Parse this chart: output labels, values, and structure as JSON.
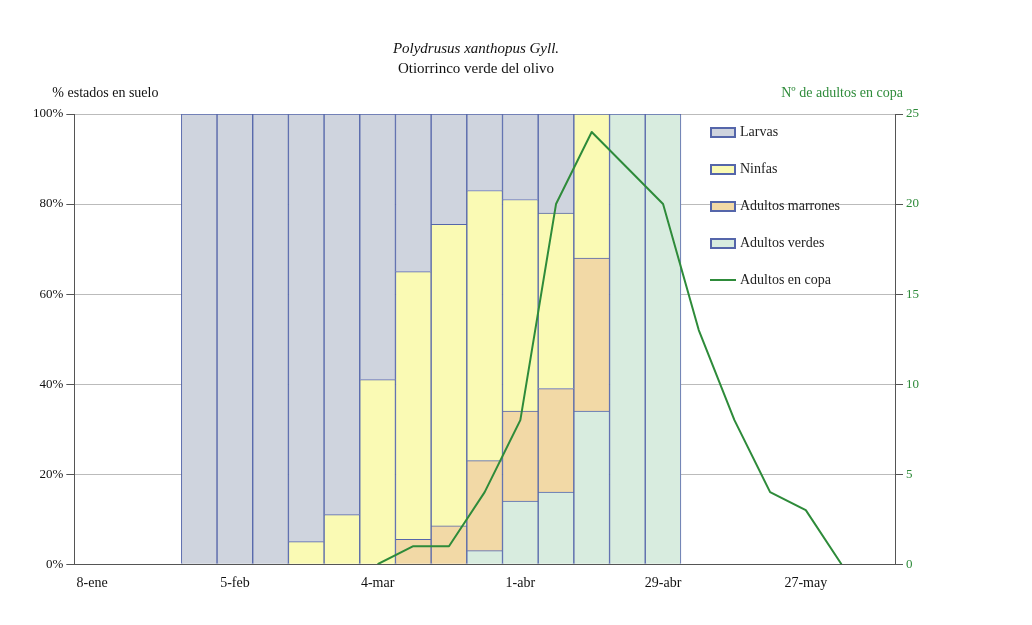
{
  "chart_data": {
    "type": "bar",
    "stacked": true,
    "title": "Polydrusus xanthopus Gyll.",
    "subtitle": "Otiorrinco verde del olivo",
    "ylabel": "% estados en suelo",
    "y2label": "Nº de adultos en copa",
    "categories": [
      "8-ene",
      null,
      null,
      null,
      "5-feb",
      null,
      null,
      null,
      "4-mar",
      null,
      null,
      null,
      "1-abr",
      null,
      null,
      null,
      "29-abr",
      null,
      null,
      null,
      "27-may",
      null,
      null
    ],
    "series": [
      {
        "name": "Adultos verdes",
        "color": "#d8ecdf",
        "values": [
          null,
          null,
          null,
          0,
          0,
          0,
          0,
          0,
          0,
          0,
          0,
          3,
          14,
          16,
          34,
          100,
          100,
          null,
          null,
          null,
          null,
          null,
          null
        ]
      },
      {
        "name": "Adultos marrones",
        "color": "#f2d9a6",
        "values": [
          null,
          null,
          null,
          0,
          0,
          0,
          0,
          0,
          0,
          5.5,
          8.5,
          20,
          20,
          23,
          34,
          0,
          0,
          null,
          null,
          null,
          null,
          null,
          null
        ]
      },
      {
        "name": "Ninfas",
        "color": "#fafab4",
        "values": [
          null,
          null,
          null,
          0,
          0,
          0,
          5,
          11,
          41,
          59.5,
          67,
          60,
          47,
          39,
          32,
          0,
          0,
          null,
          null,
          null,
          null,
          null,
          null
        ]
      },
      {
        "name": "Larvas",
        "color": "#cfd4de",
        "values": [
          null,
          null,
          null,
          100,
          100,
          100,
          95,
          89,
          59,
          35,
          24.5,
          17,
          19,
          22,
          0,
          0,
          0,
          null,
          null,
          null,
          null,
          null,
          null
        ]
      },
      {
        "name": "Adultos en copa",
        "type": "line",
        "axis": "y2",
        "color": "#2e8b3a",
        "values": [
          null,
          null,
          null,
          null,
          null,
          null,
          null,
          null,
          0,
          1,
          1,
          4,
          8,
          20,
          24,
          22,
          20,
          13,
          8,
          4,
          3,
          0,
          null
        ]
      }
    ],
    "ylim": [
      0,
      100
    ],
    "yticks": [
      {
        "value": 0,
        "label": "0%"
      },
      {
        "value": 20,
        "label": "20%"
      },
      {
        "value": 40,
        "label": "40%"
      },
      {
        "value": 60,
        "label": "60%"
      },
      {
        "value": 80,
        "label": "80%"
      },
      {
        "value": 100,
        "label": "100%"
      }
    ],
    "y2lim": [
      0,
      25
    ],
    "y2ticks": [
      0,
      5,
      10,
      15,
      20,
      25
    ],
    "grid": "y",
    "legend": "top right",
    "marker": "none",
    "line_style": "solid"
  }
}
